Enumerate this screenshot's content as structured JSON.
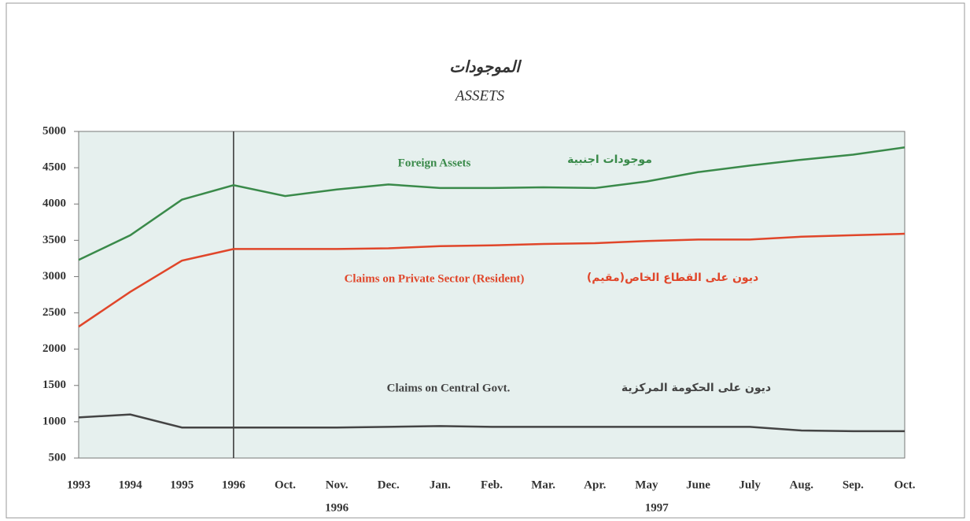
{
  "chart_data": {
    "type": "line",
    "title": "الموجودات",
    "subtitle": "ASSETS",
    "categories": [
      "1993",
      "1994",
      "1995",
      "1996",
      "Oct.",
      "Nov.",
      "Dec.",
      "Jan.",
      "Feb.",
      "Mar.",
      "Apr.",
      "May",
      "June",
      "July",
      "Aug.",
      "Sep.",
      "Oct."
    ],
    "x_groups": [
      "1996",
      "1997"
    ],
    "series": [
      {
        "name": "Foreign Assets",
        "name_ar": "موجودات اجنبية",
        "color": "#3a8a4a",
        "values": [
          3230,
          3570,
          4060,
          4260,
          4110,
          4200,
          4270,
          4220,
          4220,
          4230,
          4220,
          4310,
          4440,
          4530,
          4610,
          4680,
          4780
        ]
      },
      {
        "name": "Claims on Private Sector (Resident)",
        "name_ar": "ديون على القطاع الخاص(مقيم)",
        "color": "#e0462a",
        "values": [
          2310,
          2790,
          3220,
          3380,
          3380,
          3380,
          3390,
          3420,
          3430,
          3450,
          3460,
          3490,
          3510,
          3510,
          3550,
          3570,
          3590
        ]
      },
      {
        "name": "Claims on Central Govt.",
        "name_ar": "ديون على الحكومة المركزية",
        "color": "#444444",
        "values": [
          1060,
          1100,
          920,
          920,
          920,
          920,
          930,
          940,
          930,
          930,
          930,
          930,
          930,
          930,
          880,
          870,
          870
        ]
      }
    ],
    "ylim": [
      500,
      5000
    ],
    "yticks": [
      500,
      1000,
      1500,
      2000,
      2500,
      3000,
      3500,
      4000,
      4500,
      5000
    ],
    "grid": false
  }
}
